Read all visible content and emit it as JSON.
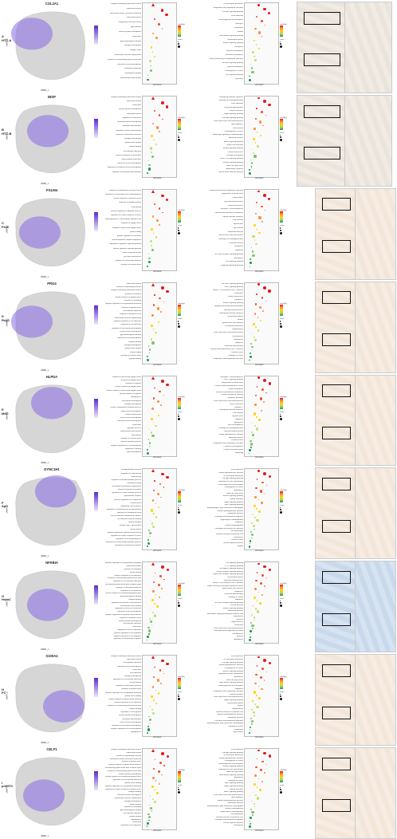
{
  "panels": [
    {
      "letter": "A",
      "cell": "HTC-A",
      "gene": "COL2A1",
      "bp_terms": [
        "collagen-containing extracellular matrix",
        "extracellular matrix",
        "extracellular matrix structural constituent",
        "extracellular space",
        "endoplasmic reticulum lumen",
        "lipid transport",
        "skeletal system development",
        "ossification",
        "glycosaminoglycan binding",
        "cartilage development",
        "collagen trimer",
        "extracellular structure organization",
        "response to transforming growth factor beta",
        "connective tissue development",
        "basement membrane",
        "proteoglycan binding",
        "endochondral bone growth"
      ],
      "kegg_terms": [
        "ECM-receptor interaction",
        "Complement and coagulation cascades",
        "PI3K-Akt signaling pathway",
        "Focal adhesion",
        "Protein digestion and absorption",
        "Glycolysis",
        "Phagosome",
        "Malaria",
        "AGE-RAGE signaling pathway",
        "Rheumatoid arthritis",
        "Relaxin signaling pathway",
        "Ferroptosis",
        "Fatty acid metabolism",
        "Cholesterol metabolism",
        "Protein processing in endoplasmic reticulum",
        "TGF-beta signaling pathway",
        "Pyruvate metabolism",
        "Proteoglycans in cancer",
        "TNF signaling pathway",
        "Lysosome"
      ],
      "colors": {
        "bar": "#e31a1c"
      }
    },
    {
      "letter": "B",
      "cell": "HTC-B",
      "gene": "IBSP",
      "bp_terms": [
        "collagen-containing extracellular matrix",
        "extracellular matrix",
        "ossification",
        "skeletal system development",
        "extracellular space",
        "regulation of ossification",
        "biomineral tissue development",
        "osteoblast differentiation",
        "regulation of bone mineralization",
        "response to mechanical stimulus",
        "cartilage development",
        "growth factor binding",
        "integrin binding",
        "cell-substrate adhesion",
        "positive regulation of ossification",
        "endochondral ossification",
        "connective tissue development",
        "regulation of biomineral tissue development",
        "regulation of osteoblast differentiation"
      ],
      "kegg_terms": [
        "Parathyroid hormone synthesis",
        "Pathways of neurodegeneration",
        "Focal adhesion",
        "Osteoclast differentiation",
        "Insulin resistance",
        "Hippo signaling pathway",
        "PI3K-Akt signaling pathway",
        "Fluid shear stress and atherosclerosis",
        "Axon guidance",
        "Prion disease",
        "Proteoglycans in cancer",
        "Adrenergic signaling in cardiomyocytes",
        "Alzheimer disease",
        "AMPK signaling pathway",
        "Gastric acid secretion",
        "Relaxin signaling pathway",
        "Cellular senescence",
        "Circadian entrainment",
        "cGMP-PKG signaling pathway",
        "Calcium signaling pathway",
        "Small cell lung cancer",
        "Aldosterone synthesis",
        "Non-alcoholic fatty liver disease"
      ],
      "colors": {
        "bar": "#e31a1c"
      }
    },
    {
      "letter": "C",
      "cell": "ProC",
      "gene": "FGLM4",
      "bp_terms": [
        "response to endoplasmic reticulum stress",
        "regulation of transcription from RNA polymerase II promoter",
        "cellular response to chemical stress",
        "response to unfolded protein",
        "RNA splicing",
        "positive regulation of apoptotic process",
        "regulation of cellular response to stress",
        "RNA polymerase II transcription regulator complex",
        "response to oxygen levels",
        "response to decreased oxygen levels",
        "protein folding",
        "positive regulation of cell death",
        "ribonucleoprotein complex biogenesis",
        "regulation of apoptotic signaling pathway",
        "intrinsic apoptotic signaling pathway",
        "cellular response to heat",
        "cell redox homeostasis",
        "response to extracellular stimulus",
        "response to nutrient levels"
      ],
      "kegg_terms": [
        "Protein processing in endoplasmic reticulum",
        "Biosynthesis of amino acids",
        "Protein export",
        "Lipid and atherosclerosis",
        "Cellular senescence",
        "Glycolysis / Gluconeogenesis",
        "Cysteine and methionine metabolism",
        "Thyroid hormone synthesis",
        "Prion disease",
        "Spliceosome",
        "Tight junction",
        "Salmonella infection",
        "Non-alcoholic fatty liver disease",
        "Pathways of neurodegeneration",
        "Parkinson disease",
        "Ferroptosis",
        "Apoptosis",
        "NOD-like receptor signaling pathway",
        "Necroptosis",
        "TNF signaling pathway",
        "Longevity regulating pathway"
      ],
      "colors": {
        "bar": "#e31a1c"
      }
    },
    {
      "letter": "D",
      "cell": "RegC",
      "gene": "PRG4",
      "bp_terms": [
        "extracellular matrix",
        "external encapsulating structure",
        "collagen-containing extracellular matrix",
        "response to hormone",
        "cellular response to oxygen levels",
        "response to wounding",
        "negative regulation of cell population proliferation",
        "response to growth factor",
        "cell-substrate adhesion",
        "response to oxidative stress",
        "extracellular structure organization",
        "negative regulation of cell adhesion",
        "regulation of cell adhesion",
        "regulation of vasculature development",
        "muscle tissue development",
        "glycosaminoglycan binding",
        "connective tissue development",
        "collagen binding",
        "cartilage development",
        "growth factor binding",
        "protein folding",
        "response to nutrient levels",
        "peptide binding"
      ],
      "kegg_terms": [
        "TGF-beta signaling pathway",
        "FoxO signaling pathway",
        "Human T-cell leukemia virus 1 infection",
        "Phagosome",
        "Cellular senescence",
        "Hepatitis B",
        "Relaxin signaling pathway",
        "Antigen processing and presentation",
        "Lipid and atherosclerosis",
        "Parathyroid hormone synthesis",
        "Rheumatoid arthritis",
        "Malaria",
        "Epstein-Barr virus infection",
        "Cell adhesion molecules",
        "Toxoplasmosis",
        "Fluid shear stress and atherosclerosis",
        "Leishmaniasis",
        "Amoebiasis",
        "Apoptosis",
        "Osteoclast differentiation",
        "Human immunodeficiency virus 1 infection",
        "Prostate cancer",
        "Pathways in cancer",
        "Complement and coagulation cascades"
      ],
      "colors": {
        "bar": "#e31a1c"
      }
    },
    {
      "letter": "E",
      "cell": "MitC",
      "gene": "HLPDA",
      "bp_terms": [
        "response to decreased oxygen levels",
        "response to oxygen levels",
        "response to hypoxia",
        "cellular response to oxygen levels",
        "cellular response to decreased oxygen levels",
        "cellular response to hypoxia",
        "angiogenesis",
        "vasculature development",
        "cartilage development",
        "cellular carbohydrate metabolic process",
        "blood vessel development",
        "cellular homeostasis",
        "muscle tissue development",
        "connective tissue development",
        "ossification",
        "glycolytic process",
        "endochondral bone growth",
        "bone growth",
        "response to nutrient levels",
        "hexose metabolic process",
        "negative regulation of cell development",
        "regulation of binding",
        "bone development"
      ],
      "kegg_terms": [
        "Glycolysis / Gluconeogenesis",
        "HIF-1 signaling pathway",
        "Biosynthesis of amino acids",
        "Central carbon metabolism in cancer",
        "Carbon metabolism",
        "Fructose and mannose metabolism",
        "Pentose phosphate pathway",
        "Metabolic pathways",
        "Fluid shear stress and atherosclerosis",
        "Insulin resistance",
        "Hepatitis C",
        "Parathyroid hormone synthesis",
        "Prion disease",
        "Thyroid cancer",
        "Apoptosis",
        "Amoebiasis",
        "Viral carcinogenesis",
        "Pathways of neurodegeneration",
        "Lipid and atherosclerosis",
        "Human papillomavirus infection",
        "Alzheimer disease",
        "Prostate cancer",
        "Complement and coagulation cascades",
        "Chemical carcinogenesis",
        "Pentose and glucuronate",
        "Mitophagy"
      ],
      "colors": {
        "bar": "#e31a1c"
      }
    },
    {
      "letter": "F",
      "cell": "SpC",
      "gene": "DYNC1H1",
      "bp_terms": [
        "mRNA metabolic process",
        "regulation of RNA splicing",
        "RNA splicing",
        "regulation of mRNA metabolic process",
        "mRNA processing",
        "microtubule cytoskeleton organization",
        "protein localization to nucleus",
        "regulation of cellular catabolic process",
        "spliceosomal complex",
        "positive regulation of cell adhesion",
        "nuclear speck",
        "cytoplasmic stress granule",
        "regulation of mRNA splicing, via spliceosome",
        "regulation of mRNA processing",
        "cell-cell adhesion mediated by cadherin",
        "cell adhesion molecule binding",
        "cadherin binding",
        "catalytic step 2 spliceosome",
        "nuclear matrix",
        "negative regulation of protein kinase activity",
        "regulation of cellular response to stress",
        "regulation of cell morphogenesis",
        "regulation of cellular amide metabolic process",
        "regulation of intracellular transport"
      ],
      "kegg_terms": [
        "Focal adhesion",
        "Human papillomavirus infection",
        "ECM-receptor interaction",
        "PI3K-Akt signaling pathway",
        "Regulation of actin cytoskeleton",
        "Protein digestion and absorption",
        "Proteoglycans in cancer",
        "Amoebiasis",
        "Small cell lung cancer",
        "Relaxin signaling pathway",
        "Platelet activation",
        "Hippo signaling pathway",
        "Rap1 signaling pathway",
        "Arrhythmogenic right ventricular cardiomyopathy",
        "Human cytomegalovirus infection",
        "Salmonella infection",
        "Leukocyte transendothelial migration",
        "Hypertrophic cardiomyopathy",
        "Shigellosis",
        "Dilated cardiomyopathy",
        "Pathogenic Escherichia coli infection",
        "Viral myocarditis",
        "Bacterial invasion of epithelial cells",
        "Endocytosis",
        "Prostate cancer",
        "Chronic myeloid leukemia",
        "Integrin"
      ],
      "colors": {
        "bar": "#e31a1c"
      }
    },
    {
      "letter": "G",
      "cell": "HomC",
      "gene": "NFKBIA",
      "bp_terms": [
        "negative regulation of cell population proliferation",
        "extracellular matrix",
        "response to wounding",
        "wound healing",
        "positive regulation of cell adhesion",
        "response to transforming growth factor beta",
        "regulation of cell-substrate adhesion",
        "transforming growth factor beta receptor signaling pathway",
        "response to mechanical stimulus",
        "regulation of cell adhesion",
        "cellular response to transforming growth factor beta stimulus",
        "glycosaminoglycan binding",
        "collagen binding",
        "regulation of epithelial cell proliferation",
        "extracellular matrix binding",
        "regulation of structural constituent",
        "connective tissue development",
        "negative regulation of epithelial cell proliferation",
        "response to oxidative stress",
        "skeletal system development",
        "cell-substrate adhesion",
        "ossification",
        "regulation of cell-cell adhesion",
        "positive regulation of cell migration",
        "negative regulation of cell migration",
        "regulation of inflammatory response"
      ],
      "kegg_terms": [
        "TNF signaling pathway",
        "IL-17 signaling pathway",
        "NF-kappa B signaling pathway",
        "Toll-like receptor signaling pathway",
        "C-type lectin receptor signaling pathway",
        "Rheumatoid arthritis",
        "Lipid and atherosclerosis",
        "Human T-cell leukemia virus 1 infection",
        "Kaposi sarcoma-associated herpesvirus infection",
        "Epstein-Barr virus infection",
        "Hepatitis B",
        "Osteoclast differentiation",
        "Pathways in cancer",
        "Apoptosis",
        "NOD-like receptor signaling pathway",
        "Yersinia infection",
        "Relaxin signaling pathway",
        "Salmonella infection",
        "AGE-RAGE signaling pathway in diabetic complications",
        "Legionellosis",
        "Pertussis",
        "Chagas disease",
        "Influenza A",
        "Fluid shear stress and atherosclerosis",
        "Transcriptional misregulation in cancer",
        "Leishmaniasis",
        "Measles",
        "Amoebiasis"
      ],
      "colors": {
        "bar": "#e31a1c"
      }
    },
    {
      "letter": "H",
      "cell": "FC",
      "gene": "S100A4",
      "bp_terms": [
        "collagen-containing extracellular matrix",
        "extracellular matrix",
        "cell-substrate adhesion",
        "connective tissue development",
        "ossification",
        "focal adhesion",
        "cartilage development",
        "regulation of cell-substrate adhesion",
        "wound healing",
        "response to mechanical stimulus",
        "response to growth factor",
        "negative regulation of cell population proliferation",
        "growth factor binding",
        "cellular response to growth factor stimulus",
        "positive regulation of cell adhesion",
        "response to transforming growth factor beta",
        "integrin binding",
        "regulation of cell migration",
        "skeletal system development",
        "osteoblast differentiation",
        "muscle tissue development",
        "regulation of vasculature development",
        "negative regulation of cell development",
        "angiogenesis"
      ],
      "kegg_terms": [
        "Focal adhesion",
        "ECM-receptor interaction",
        "PI3K-Akt signaling pathway",
        "Human papillomavirus infection",
        "Proteoglycans in cancer",
        "Relaxin signaling pathway",
        "Regulation of actin cytoskeleton",
        "Amoebiasis",
        "Small cell lung cancer",
        "AGE-RAGE signaling pathway",
        "Protein digestion and absorption",
        "Apoptosis",
        "Complement and coagulation cascades",
        "Platelet activation",
        "Fluid shear stress and atherosclerosis",
        "Hippo signaling pathway",
        "Rheumatoid arthritis",
        "Malaria",
        "Toxoplasmosis",
        "Bacterial invasion of epithelial cells",
        "Human cytomegalovirus infection",
        "Salmonella infection",
        "Leukocyte transendothelial migration",
        "Arrhythmogenic right ventricular cardiomyopathy",
        "Pathways in cancer",
        "Phagosome",
        "Tight junction"
      ],
      "colors": {
        "bar": "#e31a1c"
      }
    },
    {
      "letter": "I",
      "cell": "preHTC",
      "gene": "CELF1",
      "bp_terms": [
        "collagen-containing extracellular matrix",
        "extracellular matrix",
        "external encapsulating structure",
        "extracellular matrix structural constituent",
        "response to growth factor",
        "cellular response to growth factor stimulus",
        "transforming growth factor beta receptor signaling pathway",
        "response to transforming growth factor beta",
        "skeletal system development",
        "cellular response to transforming growth factor beta stimulus",
        "regulation of cell-substrate adhesion",
        "growth factor binding",
        "negative regulation of cell population proliferation",
        "regulation of cellular response to growth factor stimulus",
        "collagen binding",
        "connective tissue development",
        "extracellular structure organization",
        "cartilage development",
        "wound healing",
        "response to wounding",
        "glycosaminoglycan binding",
        "cell-substrate adhesion",
        "integrin binding",
        "angiogenesis",
        "ossification",
        "regulation of cell adhesion"
      ],
      "kegg_terms": [
        "Focal adhesion",
        "PI3K-Akt signaling pathway",
        "ECM-receptor interaction",
        "Human papillomavirus infection",
        "Proteoglycans in cancer",
        "Protein digestion and absorption",
        "Relaxin signaling pathway",
        "Regulation of actin cytoskeleton",
        "Small cell lung cancer",
        "AGE-RAGE signaling pathway",
        "Amoebiasis",
        "Pathways in cancer",
        "Rap1 signaling pathway",
        "Hippo signaling pathway",
        "Platelet activation",
        "MAPK signaling pathway",
        "Fluid shear stress and atherosclerosis",
        "Axon guidance",
        "Human cytomegalovirus infection",
        "Salmonella infection",
        "Arrhythmogenic right ventricular cardiomyopathy",
        "Dilated cardiomyopathy",
        "Hypertrophic cardiomyopathy",
        "Viral myocarditis",
        "Bacterial invasion of epithelial cells",
        "Leukocyte transendothelial migration",
        "Chronic myeloid leukemia",
        "Endocytosis"
      ],
      "colors": {
        "bar": "#e31a1c"
      }
    }
  ],
  "axis": {
    "xlabel_left": "UMAP_1",
    "ylabel_left": "UMAP_2",
    "xlabel_chart": "rich factor",
    "legend_title_p": "-log10(p)",
    "legend_title_count": "count"
  },
  "colors": {
    "umap_high": "#5b2bd6",
    "umap_low": "#d8d8d8",
    "dot_high": "#e31a1c",
    "dot_mid": "#ffd400",
    "dot_low": "#1a9850"
  }
}
